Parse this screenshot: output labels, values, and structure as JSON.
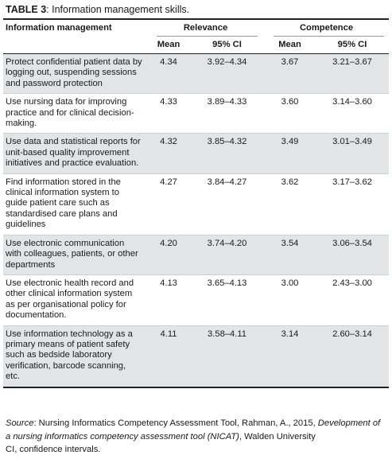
{
  "caption": {
    "label": "TABLE 3",
    "text": ": Information management skills."
  },
  "header": {
    "row_label": "Information management",
    "groups": [
      "Relevance",
      "Competence"
    ],
    "sub": [
      "Mean",
      "95% CI",
      "Mean",
      "95% CI"
    ]
  },
  "rows": [
    {
      "skill": "Protect confidential patient data by logging out, suspending sessions and password protection",
      "rel_mean": "4.34",
      "rel_ci": "3.92–4.34",
      "comp_mean": "3.67",
      "comp_ci": "3.21–3.67"
    },
    {
      "skill": "Use nursing data for improving practice and for clinical decision-making.",
      "rel_mean": "4.33",
      "rel_ci": "3.89–4.33",
      "comp_mean": "3.60",
      "comp_ci": "3.14–3.60"
    },
    {
      "skill": "Use data and statistical reports for unit-based quality improvement initiatives and practice evaluation.",
      "rel_mean": "4.32",
      "rel_ci": "3.85–4.32",
      "comp_mean": "3.49",
      "comp_ci": "3.01–3.49"
    },
    {
      "skill": "Find information stored in the clinical information system to guide patient care such as standardised care plans and guidelines",
      "rel_mean": "4.27",
      "rel_ci": "3.84–4.27",
      "comp_mean": "3.62",
      "comp_ci": "3.17–3.62"
    },
    {
      "skill": "Use electronic communication with colleagues, patients, or other departments",
      "rel_mean": "4.20",
      "rel_ci": "3.74–4.20",
      "comp_mean": "3.54",
      "comp_ci": "3.06–3.54"
    },
    {
      "skill": "Use electronic health record and other clinical information system as per organisational policy for documentation.",
      "rel_mean": "4.13",
      "rel_ci": "3.65–4.13",
      "comp_mean": "3.00",
      "comp_ci": "2.43–3.00"
    },
    {
      "skill": "Use information technology as a primary means of patient safety such as bedside laboratory verification, barcode scanning, etc.",
      "rel_mean": "4.11",
      "rel_ci": "3.58–4.11",
      "comp_mean": "3.14",
      "comp_ci": "2.60–3.14"
    }
  ],
  "source": {
    "label": "Source",
    "text_a": ": Nursing Informatics Competency Assessment Tool, Rahman, A., 2015, ",
    "title": "Development of a nursing informatics competency assessment tool (NICAT)",
    "text_b": ", Walden University",
    "note": "CI, confidence intervals."
  }
}
